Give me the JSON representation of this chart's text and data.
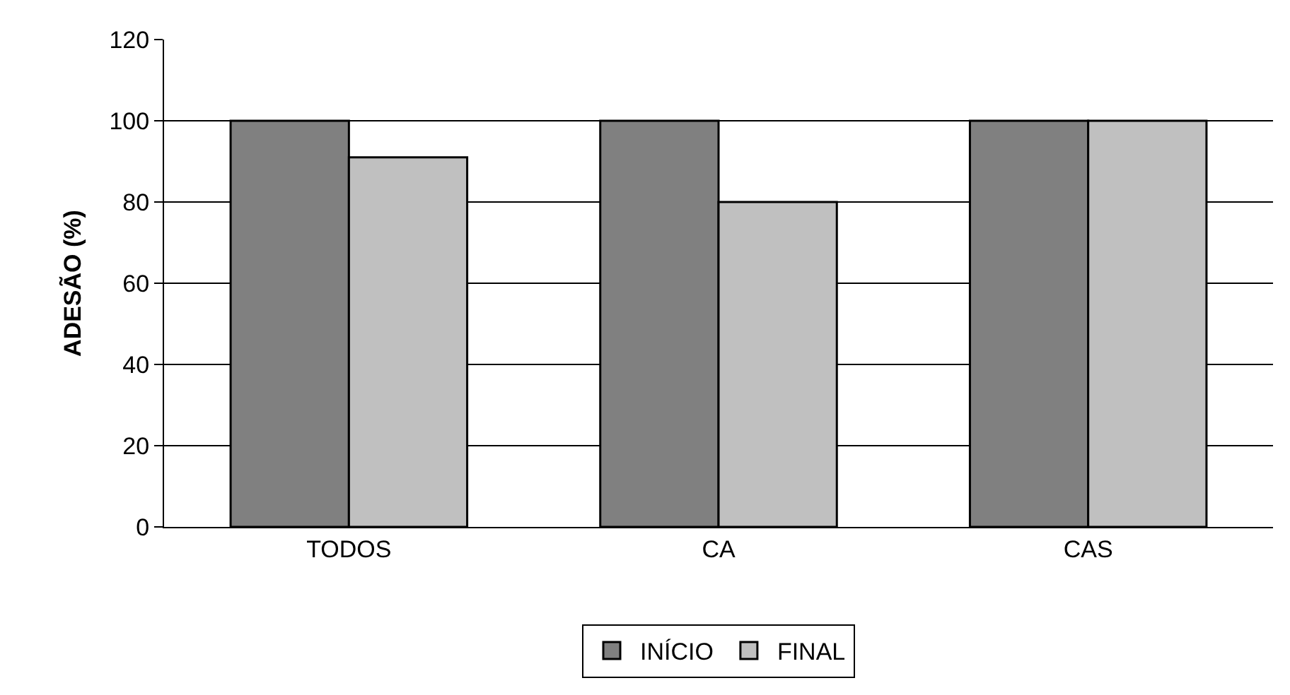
{
  "chart_data": {
    "type": "bar",
    "ylabel": "ADESÃO (%)",
    "categories": [
      "TODOS",
      "CA",
      "CAS"
    ],
    "series": [
      {
        "name": "INÍCIO",
        "color": "#808080",
        "values": [
          100,
          100,
          100
        ]
      },
      {
        "name": "FINAL",
        "color": "#c0c0c0",
        "values": [
          91,
          80,
          100
        ]
      }
    ],
    "ylim": [
      0,
      120
    ],
    "yticks": [
      0,
      20,
      40,
      60,
      80,
      100,
      120
    ],
    "grid": "y",
    "legend": "bottom"
  }
}
